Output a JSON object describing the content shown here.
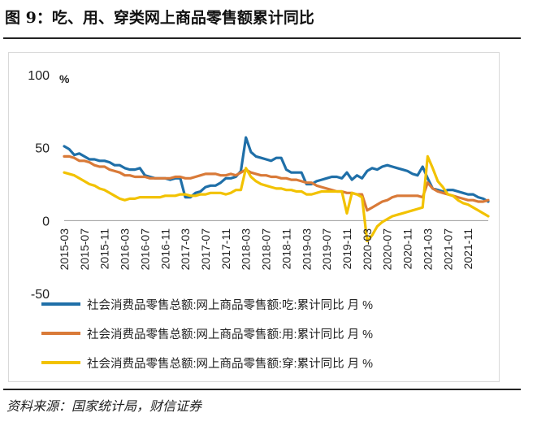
{
  "figure": {
    "title": "图 9：吃、用、穿类网上商品零售额累计同比",
    "source": "资料来源：国家统计局，财信证券"
  },
  "colors": {
    "series": [
      "#1f6fa8",
      "#d97a38",
      "#f2c200"
    ],
    "zero_line": "#999999",
    "tick_text": "#222222"
  },
  "chart_data": {
    "type": "line",
    "ylabel": "%",
    "ylim": [
      -50,
      100
    ],
    "yticks": [
      -50,
      0,
      50,
      100
    ],
    "xlim": [
      0,
      84
    ],
    "grid": false,
    "legend_position": "bottom",
    "x_tick_labels": [
      "2015-03",
      "2015-07",
      "2015-11",
      "2016-03",
      "2016-07",
      "2016-11",
      "2017-03",
      "2017-07",
      "2017-11",
      "2018-03",
      "2018-07",
      "2018-11",
      "2019-03",
      "2019-07",
      "2019-11",
      "2020-03",
      "2020-07",
      "2020-11",
      "2021-03",
      "2021-07",
      "2021-11"
    ],
    "x_tick_months": [
      0,
      4,
      8,
      12,
      16,
      20,
      24,
      28,
      32,
      36,
      40,
      44,
      48,
      52,
      56,
      60,
      64,
      68,
      72,
      76,
      80
    ],
    "series": [
      {
        "name": "社会消费品零售总额:网上商品零售额:吃:累计同比  月  %",
        "points": [
          [
            0,
            51
          ],
          [
            1,
            49
          ],
          [
            2,
            45
          ],
          [
            3,
            46
          ],
          [
            4,
            44
          ],
          [
            5,
            42
          ],
          [
            6,
            42
          ],
          [
            7,
            41
          ],
          [
            8,
            41
          ],
          [
            9,
            40
          ],
          [
            10,
            38
          ],
          [
            11,
            38
          ],
          [
            12,
            36
          ],
          [
            13,
            35
          ],
          [
            14,
            35
          ],
          [
            15,
            36
          ],
          [
            16,
            31
          ],
          [
            17,
            30
          ],
          [
            18,
            29
          ],
          [
            19,
            29
          ],
          [
            20,
            29
          ],
          [
            21,
            28
          ],
          [
            22,
            29
          ],
          [
            23,
            29
          ],
          [
            24,
            16
          ],
          [
            25,
            16
          ],
          [
            26,
            19
          ],
          [
            27,
            20
          ],
          [
            28,
            23
          ],
          [
            29,
            24
          ],
          [
            30,
            24
          ],
          [
            31,
            26
          ],
          [
            32,
            29
          ],
          [
            33,
            29
          ],
          [
            34,
            30
          ],
          [
            35,
            34
          ],
          [
            36,
            57
          ],
          [
            37,
            47
          ],
          [
            38,
            44
          ],
          [
            39,
            43
          ],
          [
            40,
            42
          ],
          [
            41,
            41
          ],
          [
            42,
            43
          ],
          [
            43,
            43
          ],
          [
            44,
            35
          ],
          [
            45,
            33
          ],
          [
            46,
            33
          ],
          [
            47,
            33
          ],
          [
            48,
            25
          ],
          [
            49,
            25
          ],
          [
            50,
            27
          ],
          [
            51,
            28
          ],
          [
            52,
            29
          ],
          [
            53,
            30
          ],
          [
            54,
            30
          ],
          [
            55,
            29
          ],
          [
            56,
            33
          ],
          [
            57,
            28
          ],
          [
            58,
            31
          ],
          [
            59,
            29
          ],
          [
            60,
            34
          ],
          [
            61,
            36
          ],
          [
            62,
            35
          ],
          [
            63,
            37
          ],
          [
            64,
            38
          ],
          [
            65,
            37
          ],
          [
            66,
            36
          ],
          [
            67,
            35
          ],
          [
            68,
            34
          ],
          [
            69,
            32
          ],
          [
            70,
            31
          ],
          [
            71,
            37
          ],
          [
            72,
            29
          ],
          [
            73,
            22
          ],
          [
            74,
            21
          ],
          [
            75,
            20
          ],
          [
            76,
            21
          ],
          [
            77,
            21
          ],
          [
            78,
            20
          ],
          [
            79,
            19
          ],
          [
            80,
            18
          ],
          [
            81,
            18
          ],
          [
            82,
            16
          ],
          [
            83,
            15
          ],
          [
            84,
            13
          ]
        ]
      },
      {
        "name": "社会消费品零售总额:网上商品零售额:用:累计同比  月  %",
        "points": [
          [
            0,
            44
          ],
          [
            1,
            44
          ],
          [
            2,
            43
          ],
          [
            3,
            41
          ],
          [
            4,
            41
          ],
          [
            5,
            40
          ],
          [
            6,
            38
          ],
          [
            7,
            37
          ],
          [
            8,
            37
          ],
          [
            9,
            35
          ],
          [
            10,
            34
          ],
          [
            11,
            33
          ],
          [
            12,
            31
          ],
          [
            13,
            31
          ],
          [
            14,
            30
          ],
          [
            15,
            30
          ],
          [
            16,
            30
          ],
          [
            17,
            29
          ],
          [
            18,
            29
          ],
          [
            19,
            29
          ],
          [
            20,
            29
          ],
          [
            21,
            29
          ],
          [
            22,
            30
          ],
          [
            23,
            30
          ],
          [
            24,
            29
          ],
          [
            25,
            29
          ],
          [
            26,
            30
          ],
          [
            27,
            31
          ],
          [
            28,
            32
          ],
          [
            29,
            32
          ],
          [
            30,
            32
          ],
          [
            31,
            31
          ],
          [
            32,
            31
          ],
          [
            33,
            32
          ],
          [
            34,
            31
          ],
          [
            35,
            33
          ],
          [
            36,
            35
          ],
          [
            37,
            33
          ],
          [
            38,
            32
          ],
          [
            39,
            31
          ],
          [
            40,
            31
          ],
          [
            41,
            30
          ],
          [
            42,
            30
          ],
          [
            43,
            29
          ],
          [
            44,
            29
          ],
          [
            45,
            28
          ],
          [
            46,
            28
          ],
          [
            47,
            27
          ],
          [
            48,
            26
          ],
          [
            49,
            26
          ],
          [
            50,
            24
          ],
          [
            51,
            23
          ],
          [
            52,
            22
          ],
          [
            53,
            21
          ],
          [
            54,
            20
          ],
          [
            55,
            20
          ],
          [
            56,
            19
          ],
          [
            57,
            19
          ],
          [
            58,
            18
          ],
          [
            59,
            18
          ],
          [
            60,
            7
          ],
          [
            61,
            9
          ],
          [
            62,
            11
          ],
          [
            63,
            13
          ],
          [
            64,
            14
          ],
          [
            65,
            16
          ],
          [
            66,
            17
          ],
          [
            67,
            17
          ],
          [
            68,
            17
          ],
          [
            69,
            17
          ],
          [
            70,
            17
          ],
          [
            71,
            16
          ],
          [
            72,
            26
          ],
          [
            73,
            22
          ],
          [
            74,
            20
          ],
          [
            75,
            19
          ],
          [
            76,
            18
          ],
          [
            77,
            17
          ],
          [
            78,
            16
          ],
          [
            79,
            15
          ],
          [
            80,
            14
          ],
          [
            81,
            14
          ],
          [
            82,
            13
          ],
          [
            83,
            13
          ],
          [
            84,
            14
          ]
        ]
      },
      {
        "name": "社会消费品零售总额:网上商品零售额:穿:累计同比  月  %",
        "points": [
          [
            0,
            33
          ],
          [
            1,
            32
          ],
          [
            2,
            31
          ],
          [
            3,
            29
          ],
          [
            4,
            27
          ],
          [
            5,
            25
          ],
          [
            6,
            24
          ],
          [
            7,
            22
          ],
          [
            8,
            21
          ],
          [
            9,
            19
          ],
          [
            10,
            17
          ],
          [
            11,
            15
          ],
          [
            12,
            14
          ],
          [
            13,
            15
          ],
          [
            14,
            15
          ],
          [
            15,
            16
          ],
          [
            16,
            16
          ],
          [
            17,
            16
          ],
          [
            18,
            16
          ],
          [
            19,
            16
          ],
          [
            20,
            17
          ],
          [
            21,
            17
          ],
          [
            22,
            17
          ],
          [
            23,
            18
          ],
          [
            24,
            18
          ],
          [
            25,
            17
          ],
          [
            26,
            17
          ],
          [
            27,
            18
          ],
          [
            28,
            18
          ],
          [
            29,
            19
          ],
          [
            30,
            19
          ],
          [
            31,
            19
          ],
          [
            32,
            18
          ],
          [
            33,
            19
          ],
          [
            34,
            21
          ],
          [
            35,
            21
          ],
          [
            36,
            36
          ],
          [
            37,
            30
          ],
          [
            38,
            27
          ],
          [
            39,
            25
          ],
          [
            40,
            24
          ],
          [
            41,
            23
          ],
          [
            42,
            22
          ],
          [
            43,
            22
          ],
          [
            44,
            21
          ],
          [
            45,
            21
          ],
          [
            46,
            20
          ],
          [
            47,
            20
          ],
          [
            48,
            18
          ],
          [
            49,
            18
          ],
          [
            50,
            19
          ],
          [
            51,
            20
          ],
          [
            52,
            20
          ],
          [
            53,
            20
          ],
          [
            54,
            20
          ],
          [
            55,
            20
          ],
          [
            56,
            5
          ],
          [
            57,
            19
          ],
          [
            58,
            18
          ],
          [
            59,
            16
          ],
          [
            60,
            -14
          ],
          [
            61,
            -10
          ],
          [
            62,
            -4
          ],
          [
            63,
            -1
          ],
          [
            64,
            1
          ],
          [
            65,
            3
          ],
          [
            66,
            4
          ],
          [
            67,
            5
          ],
          [
            68,
            6
          ],
          [
            69,
            7
          ],
          [
            70,
            8
          ],
          [
            71,
            9
          ],
          [
            72,
            44
          ],
          [
            73,
            36
          ],
          [
            74,
            27
          ],
          [
            75,
            23
          ],
          [
            76,
            18
          ],
          [
            77,
            17
          ],
          [
            78,
            14
          ],
          [
            79,
            12
          ],
          [
            80,
            11
          ],
          [
            81,
            9
          ],
          [
            82,
            7
          ],
          [
            83,
            5
          ],
          [
            84,
            3
          ]
        ]
      }
    ]
  }
}
